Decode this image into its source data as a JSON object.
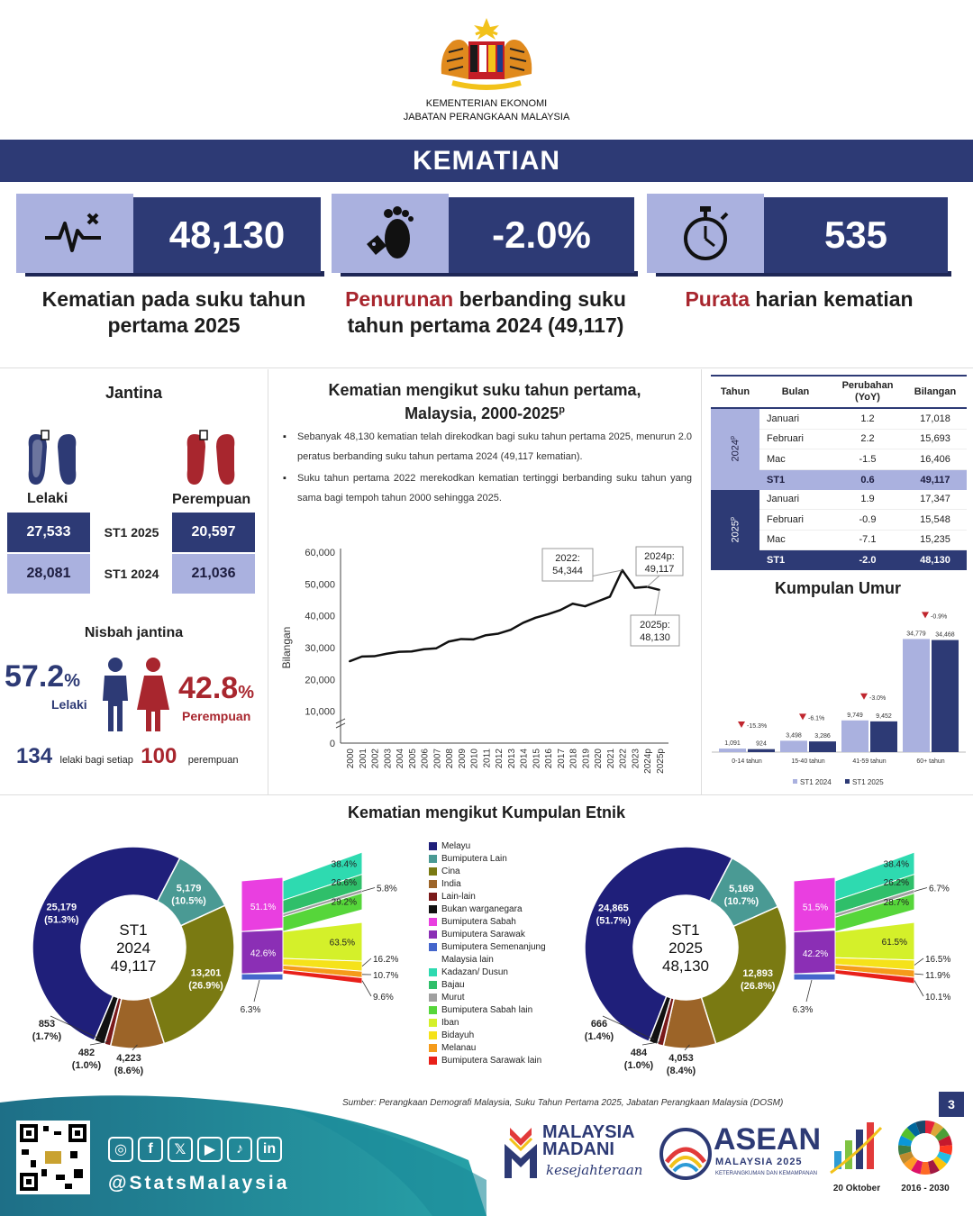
{
  "header": {
    "ministry_line1": "KEMENTERIAN EKONOMI",
    "ministry_line2": "JABATAN PERANGKAAN MALAYSIA",
    "title": "KEMATIAN"
  },
  "kpis": [
    {
      "value": "48,130",
      "desc": "Kematian pada suku tahun pertama 2025",
      "icon": "heartbeat-icon"
    },
    {
      "value": "-2.0%",
      "desc_highlight": "Penurunan",
      "desc": "berbanding suku tahun pertama 2024 (49,117)",
      "icon": "footprint-tag-icon"
    },
    {
      "value": "535",
      "desc_highlight": "Purata",
      "desc": "harian kematian",
      "icon": "stopwatch-icon"
    }
  ],
  "gender": {
    "title": "Jantina",
    "male_label": "Lelaki",
    "female_label": "Perempuan",
    "rows": [
      {
        "period": "ST1 2025",
        "male": "27,533",
        "female": "20,597"
      },
      {
        "period": "ST1 2024",
        "male": "28,081",
        "female": "21,036"
      }
    ],
    "ratio_title": "Nisbah jantina",
    "male_pct": "57.2",
    "female_pct": "42.8",
    "pct_sign": "%",
    "ratio_male": "134",
    "ratio_text": "lelaki bagi setiap",
    "ratio_female": "100",
    "ratio_female_word": "perempuan"
  },
  "trend": {
    "title_line1": "Kematian mengikut suku tahun pertama,",
    "title_line2": "Malaysia, 2000-2025",
    "title_sup": "p",
    "bullets": [
      "Sebanyak 48,130 kematian telah direkodkan bagi suku tahun pertama 2025, menurun 2.0 peratus berbanding suku tahun pertama 2024 (49,117 kematian).",
      "Suku tahun pertama 2022 merekodkan kematian tertinggi berbanding suku tahun yang sama bagi tempoh tahun 2000 sehingga 2025."
    ],
    "callouts": [
      {
        "line1": "2022:",
        "line2": "54,344"
      },
      {
        "line1": "2024p:",
        "line2": "49,117"
      },
      {
        "line1": "2025p:",
        "line2": "48,130"
      }
    ]
  },
  "monthly_table": {
    "headers": [
      "Tahun",
      "Bulan",
      "Perubahan (YoY)",
      "Bilangan"
    ],
    "groups": [
      {
        "year": "2024",
        "year_sup": "p",
        "rows": [
          {
            "month": "Januari",
            "change": "1.2",
            "count": "17,018"
          },
          {
            "month": "Februari",
            "change": "2.2",
            "count": "15,693"
          },
          {
            "month": "Mac",
            "change": "-1.5",
            "count": "16,406"
          }
        ],
        "total": {
          "month": "ST1",
          "change": "0.6",
          "count": "49,117"
        }
      },
      {
        "year": "2025",
        "year_sup": "p",
        "rows": [
          {
            "month": "Januari",
            "change": "1.9",
            "count": "17,347"
          },
          {
            "month": "Februari",
            "change": "-0.9",
            "count": "15,548"
          },
          {
            "month": "Mac",
            "change": "-7.1",
            "count": "15,235"
          }
        ],
        "total": {
          "month": "ST1",
          "change": "-2.0",
          "count": "48,130"
        }
      }
    ]
  },
  "age": {
    "title": "Kumpulan Umur",
    "legend_2024": "ST1 2024",
    "legend_2025": "ST1 2025"
  },
  "ethnic": {
    "title": "Kematian mengikut Kumpulan Etnik",
    "legend": [
      {
        "name": "Melayu",
        "color": "#1f1f7a"
      },
      {
        "name": "Bumiputera Lain",
        "color": "#4a9a94"
      },
      {
        "name": "Cina",
        "color": "#7a7a12"
      },
      {
        "name": "India",
        "color": "#9c6428"
      },
      {
        "name": "Lain-lain",
        "color": "#7a1a1a"
      },
      {
        "name": "Bukan warganegara",
        "color": "#111111"
      },
      {
        "name": "Bumiputera Sabah",
        "color": "#e93fe0"
      },
      {
        "name": "Bumiputera Sarawak",
        "color": "#8b2fb5"
      },
      {
        "name": "Bumiputera Semenanjung Malaysia lain",
        "color": "#4466cc"
      },
      {
        "name": "Kadazan/ Dusun",
        "color": "#2edab0"
      },
      {
        "name": "Bajau",
        "color": "#2fbf6a"
      },
      {
        "name": "Murut",
        "color": "#a0a0a0"
      },
      {
        "name": "Bumiputera Sabah lain",
        "color": "#56d63a"
      },
      {
        "name": "Iban",
        "color": "#d4f02a"
      },
      {
        "name": "Bidayuh",
        "color": "#f5e21a"
      },
      {
        "name": "Melanau",
        "color": "#f59b1a"
      },
      {
        "name": "Bumiputera Sarawak lain",
        "color": "#e8201a"
      }
    ],
    "charts": [
      {
        "center_line1": "ST1",
        "center_line2": "2024",
        "center_line3": "49,117",
        "main": [
          {
            "name": "Melayu",
            "value": "25,179",
            "pct": "(51.3%)"
          },
          {
            "name": "Bumiputera Lain",
            "value": "5,179",
            "pct": "(10.5%)"
          },
          {
            "name": "Cina",
            "value": "13,201",
            "pct": "(26.9%)"
          },
          {
            "name": "India",
            "value": "4,223",
            "pct": "(8.6%)"
          },
          {
            "name": "Lain-lain",
            "value": "482",
            "pct": "(1.0%)"
          },
          {
            "name": "Bukan warganegara",
            "value": "853",
            "pct": "(1.7%)"
          }
        ],
        "sub_bp": [
          {
            "name": "Bumiputera Sabah",
            "pct": "51.1%"
          },
          {
            "name": "Bumiputera Sarawak",
            "pct": "42.6%"
          },
          {
            "name": "Bumiputera Semenanjung Malaysia lain",
            "pct": "6.3%"
          }
        ],
        "sub_sabah": [
          {
            "name": "Kadazan/ Dusun",
            "pct": "38.4%"
          },
          {
            "name": "Bajau",
            "pct": "26.6%"
          },
          {
            "name": "Murut",
            "pct": "5.8%"
          },
          {
            "name": "Bumiputera Sabah lain",
            "pct": "29.2%"
          }
        ],
        "sub_sarawak": [
          {
            "name": "Iban",
            "pct": "63.5%"
          },
          {
            "name": "Bidayuh",
            "pct": "16.2%"
          },
          {
            "name": "Melanau",
            "pct": "10.7%"
          },
          {
            "name": "Bumiputera Sarawak lain",
            "pct": "9.6%"
          }
        ]
      },
      {
        "center_line1": "ST1",
        "center_line2": "2025",
        "center_line3": "48,130",
        "main": [
          {
            "name": "Melayu",
            "value": "24,865",
            "pct": "(51.7%)"
          },
          {
            "name": "Bumiputera Lain",
            "value": "5,169",
            "pct": "(10.7%)"
          },
          {
            "name": "Cina",
            "value": "12,893",
            "pct": "(26.8%)"
          },
          {
            "name": "India",
            "value": "4,053",
            "pct": "(8.4%)"
          },
          {
            "name": "Lain-lain",
            "value": "484",
            "pct": "(1.0%)"
          },
          {
            "name": "Bukan warganegara",
            "value": "666",
            "pct": "(1.4%)"
          }
        ],
        "sub_bp": [
          {
            "name": "Bumiputera Sabah",
            "pct": "51.5%"
          },
          {
            "name": "Bumiputera Sarawak",
            "pct": "42.2%"
          },
          {
            "name": "Bumiputera Semenanjung Malaysia lain",
            "pct": "6.3%"
          }
        ],
        "sub_sabah": [
          {
            "name": "Kadazan/ Dusun",
            "pct": "38.4%"
          },
          {
            "name": "Bajau",
            "pct": "26.2%"
          },
          {
            "name": "Murut",
            "pct": "6.7%"
          },
          {
            "name": "Bumiputera Sabah lain",
            "pct": "28.7%"
          }
        ],
        "sub_sarawak": [
          {
            "name": "Iban",
            "pct": "61.5%"
          },
          {
            "name": "Bidayuh",
            "pct": "16.5%"
          },
          {
            "name": "Melanau",
            "pct": "11.9%"
          },
          {
            "name": "Bumiputera Sarawak lain",
            "pct": "10.1%"
          }
        ]
      }
    ]
  },
  "source": "Sumber: Perangkaan Demografi Malaysia, Suku Tahun Pertama 2025, Jabatan Perangkaan Malaysia (DOSM)",
  "page_number": "3",
  "footer": {
    "handle": "@StatsMalaysia",
    "social": [
      "instagram-icon",
      "facebook-icon",
      "x-icon",
      "youtube-icon",
      "tiktok-icon",
      "linkedin-icon"
    ],
    "madani_line1": "MALAYSIA",
    "madani_line2": "MADANI",
    "madani_line3": "kesejahteraan",
    "asean_line1": "ASEAN",
    "asean_line2": "MALAYSIA 2025",
    "asean_line3": "KETERANGKUMAN DAN KEMAMPANAN",
    "stats_day": "20 Oktober",
    "sdg_years": "2016 - 2030"
  },
  "chart_data": [
    {
      "type": "line",
      "x": [
        "2000",
        "2001",
        "2002",
        "2003",
        "2004",
        "2005",
        "2006",
        "2007",
        "2008",
        "2009",
        "2010",
        "2011",
        "2012",
        "2013",
        "2014",
        "2015",
        "2016",
        "2017",
        "2018",
        "2019",
        "2020",
        "2021",
        "2022",
        "2023",
        "2024p",
        "2025p"
      ],
      "values": [
        25700,
        27200,
        27300,
        28100,
        28700,
        28800,
        29500,
        29800,
        31900,
        32700,
        32600,
        33900,
        34400,
        35600,
        37800,
        39400,
        40500,
        41800,
        43800,
        43000,
        44500,
        46000,
        54344,
        48800,
        49117,
        48130
      ],
      "xlabel": "",
      "ylabel": "Bilangan",
      "ylim": [
        0,
        60000
      ],
      "yticks": [
        "0",
        "10,000",
        "20,000",
        "30,000",
        "40,000",
        "50,000",
        "60,000"
      ],
      "grid": false
    },
    {
      "type": "bar",
      "categories": [
        "0-14 tahun",
        "15-40 tahun",
        "41-59 tahun",
        "60+ tahun"
      ],
      "series": [
        {
          "name": "ST1 2024",
          "values": [
            1091,
            3498,
            9749,
            34779
          ],
          "labels": [
            "1,091",
            "3,498",
            "9,749",
            "34,779"
          ],
          "color": "#aab1df"
        },
        {
          "name": "ST1 2025",
          "values": [
            924,
            3286,
            9452,
            34468
          ],
          "labels": [
            "924",
            "3,286",
            "9,452",
            "34,468"
          ],
          "color": "#2d3a75"
        }
      ],
      "changes": [
        "-15.3%",
        "-6.1%",
        "-3.0%",
        "-0.9%"
      ],
      "legend": "bottom"
    }
  ]
}
